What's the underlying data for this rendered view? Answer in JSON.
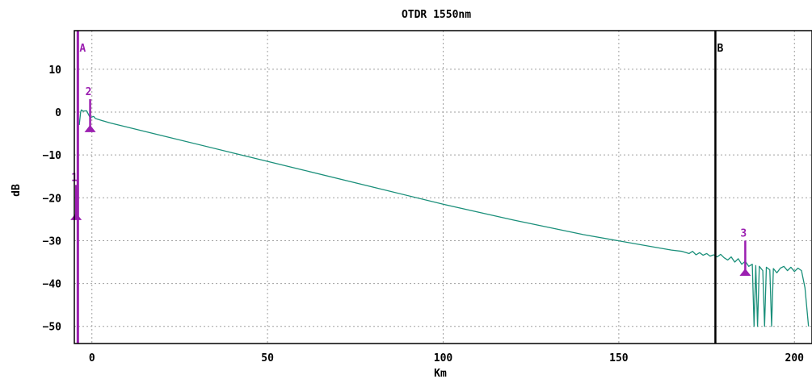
{
  "chart_data": {
    "type": "line",
    "title": "OTDR 1550nm",
    "xlabel": "Km",
    "ylabel": "dB",
    "xlim": [
      -5,
      205
    ],
    "ylim": [
      -54,
      19
    ],
    "x_ticks": [
      0,
      50,
      100,
      150,
      200
    ],
    "y_ticks": [
      10,
      0,
      -10,
      -20,
      -30,
      -40,
      -50
    ],
    "grid": true,
    "colors": {
      "trace": "#1a8f7a",
      "markers": "#9b1fb0",
      "cursor_b": "#000000",
      "frame": "#000000"
    },
    "series": [
      {
        "values_x": [
          -3.6,
          -3.2,
          -3.0,
          -2.5,
          -1.5,
          -0.5,
          0.5,
          1.0,
          5,
          20,
          40,
          60,
          80,
          100,
          120,
          140,
          160,
          165,
          168,
          170,
          171,
          172,
          173,
          174,
          175,
          176,
          177,
          178,
          179,
          180,
          181,
          182,
          183,
          184,
          185,
          186,
          187,
          188,
          188.5,
          189,
          189.5,
          190,
          191,
          191.5,
          192,
          193,
          193.5,
          194,
          195,
          196,
          197,
          198,
          199,
          200,
          201,
          202,
          203,
          204
        ],
        "values_y": [
          -3,
          0,
          0.5,
          0.2,
          0.3,
          -1.3,
          -1.0,
          -1.5,
          -2.5,
          -5.5,
          -9.5,
          -13.5,
          -17.5,
          -21.5,
          -25.2,
          -28.6,
          -31.5,
          -32.2,
          -32.5,
          -33.0,
          -32.5,
          -33.3,
          -32.8,
          -33.4,
          -33.0,
          -33.6,
          -33.3,
          -33.8,
          -33.2,
          -34.0,
          -34.5,
          -33.8,
          -35.0,
          -34.2,
          -35.5,
          -34.8,
          -36.0,
          -35.5,
          -50,
          -35.8,
          -50,
          -36.0,
          -37.0,
          -50,
          -36.2,
          -36.8,
          -50,
          -36.5,
          -37.5,
          -36.4,
          -36.0,
          -37.0,
          -36.2,
          -37.2,
          -36.4,
          -37.0,
          -41.0,
          -50
        ]
      }
    ],
    "cursors": [
      {
        "label": "A",
        "x": -4
      },
      {
        "label": "B",
        "x": 177.5
      }
    ],
    "markers": [
      {
        "label": "1",
        "x": -4.5,
        "y_top": -17,
        "y_bottom": -25
      },
      {
        "label": "2",
        "x": -0.5,
        "y_top": 3,
        "y_bottom": -4.5
      },
      {
        "label": "3",
        "x": 186,
        "y_top": -30,
        "y_bottom": -38
      }
    ]
  }
}
